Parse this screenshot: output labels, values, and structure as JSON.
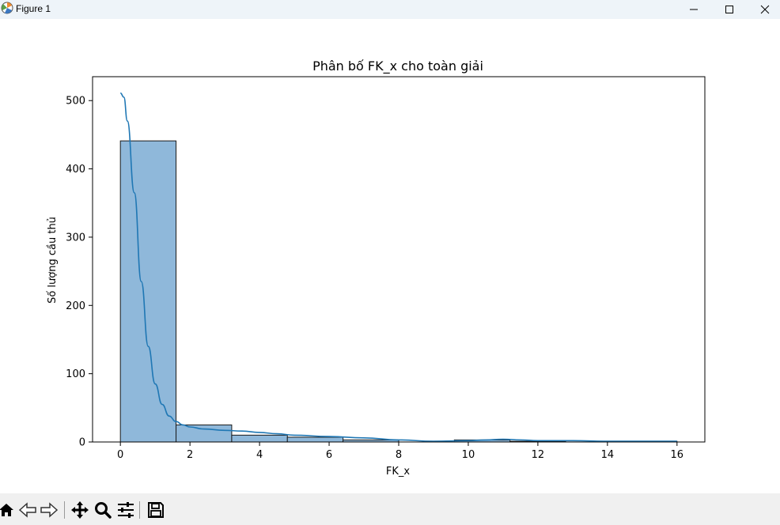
{
  "window": {
    "title": "Figure 1",
    "controls": [
      "minimize-icon",
      "maximize-icon",
      "close-icon"
    ]
  },
  "toolbar": {
    "buttons": [
      "home-icon",
      "back-icon",
      "forward-icon",
      "pan-icon",
      "zoom-icon",
      "configure-subplots-icon",
      "save-icon"
    ]
  },
  "chart_data": {
    "type": "bar",
    "title": "Phân bố FK_x cho toàn giải",
    "xlabel": "FK_x",
    "ylabel": "Số lượng cầu thủ",
    "xlim": [
      -0.8,
      16.8
    ],
    "ylim": [
      0,
      535
    ],
    "xticks": [
      0,
      2,
      4,
      6,
      8,
      10,
      12,
      14,
      16
    ],
    "yticks": [
      0,
      100,
      200,
      300,
      400,
      500
    ],
    "bin_edges": [
      0,
      1.6,
      3.2,
      4.8,
      6.4,
      8.0,
      9.6,
      11.2,
      12.8,
      14.4,
      16.0
    ],
    "counts": [
      441,
      25,
      10,
      7,
      3,
      0,
      3,
      1,
      0,
      1
    ],
    "bar_color": "#8fb8da",
    "edge_color": "#1a1a1a",
    "kde": {
      "color": "#1f77b4",
      "x": [
        0,
        0.1,
        0.2,
        0.4,
        0.6,
        0.8,
        1.0,
        1.2,
        1.4,
        1.6,
        1.8,
        2.0,
        2.4,
        3.0,
        3.5,
        4.0,
        4.5,
        5.0,
        6.0,
        7.0,
        8.0,
        9.0,
        10.0,
        10.5,
        11.0,
        11.5,
        12.0,
        13.0,
        14.0,
        15.0,
        16.0
      ],
      "y": [
        511,
        505,
        470,
        365,
        235,
        140,
        85,
        55,
        38,
        30,
        25,
        22,
        19,
        17,
        16,
        14,
        12,
        10,
        8,
        6,
        3,
        1,
        2,
        3,
        4,
        3,
        2,
        2,
        1,
        1,
        1
      ]
    },
    "grid": false
  }
}
